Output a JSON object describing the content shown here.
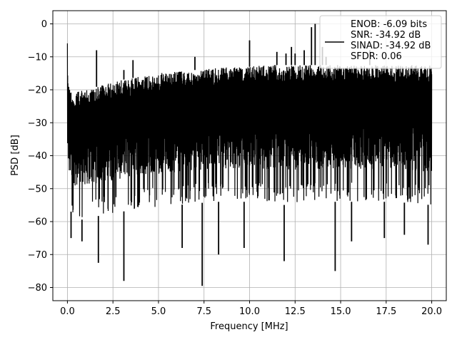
{
  "chart_data": {
    "type": "line",
    "xlabel": "Frequency [MHz]",
    "ylabel": "PSD [dB]",
    "xlim": [
      -0.8,
      20.8
    ],
    "ylim": [
      -84,
      4
    ],
    "x_ticks": [
      0.0,
      2.5,
      5.0,
      7.5,
      10.0,
      12.5,
      15.0,
      17.5,
      20.0
    ],
    "x_tick_labels": [
      "0.0",
      "2.5",
      "5.0",
      "7.5",
      "10.0",
      "12.5",
      "15.0",
      "17.5",
      "20.0"
    ],
    "y_ticks": [
      0,
      -10,
      -20,
      -30,
      -40,
      -50,
      -60,
      -70,
      -80
    ],
    "y_tick_labels": [
      "0",
      "−10",
      "−20",
      "−30",
      "−40",
      "−50",
      "−60",
      "−70",
      "−80"
    ],
    "grid": true,
    "legend_position": "top-right",
    "series": [
      {
        "name": "ENOB: -6.09 bits\nSNR: -34.92 dB\nSINAD: -34.92 dB\nSFDR: 0.06",
        "color": "#000000",
        "x_range": [
          0.0,
          20.0
        ],
        "upper_envelope": [
          [
            0.0,
            -2
          ],
          [
            0.03,
            -17
          ],
          [
            0.3,
            -21
          ],
          [
            1.0,
            -20
          ],
          [
            2.0,
            -18.5
          ],
          [
            3.0,
            -17
          ],
          [
            4.0,
            -16
          ],
          [
            5.0,
            -15
          ],
          [
            6.0,
            -14.5
          ],
          [
            7.0,
            -14
          ],
          [
            8.0,
            -13.5
          ],
          [
            9.0,
            -13
          ],
          [
            10.0,
            -13
          ],
          [
            11.0,
            -12.5
          ],
          [
            12.0,
            -12.5
          ],
          [
            13.0,
            -12.5
          ],
          [
            14.0,
            -12.5
          ],
          [
            15.0,
            -12.5
          ],
          [
            16.0,
            -12.5
          ],
          [
            17.0,
            -12.5
          ],
          [
            18.0,
            -12.5
          ],
          [
            19.0,
            -12.5
          ],
          [
            20.0,
            -12.5
          ]
        ],
        "lower_envelope": [
          [
            0.0,
            -55
          ],
          [
            0.5,
            -60
          ],
          [
            1.0,
            -59
          ],
          [
            2.0,
            -58
          ],
          [
            4.0,
            -56
          ],
          [
            6.0,
            -55
          ],
          [
            8.0,
            -54
          ],
          [
            10.0,
            -54
          ],
          [
            12.0,
            -55
          ],
          [
            14.0,
            -54
          ],
          [
            16.0,
            -54
          ],
          [
            18.0,
            -54
          ],
          [
            20.0,
            -55
          ]
        ],
        "spurs": [
          [
            1.6,
            -8
          ],
          [
            3.1,
            -14
          ],
          [
            3.6,
            -11
          ],
          [
            7.0,
            -10
          ],
          [
            10.0,
            -5
          ],
          [
            11.5,
            -8.5
          ],
          [
            12.0,
            -9
          ],
          [
            12.3,
            -7
          ],
          [
            12.5,
            -9
          ],
          [
            13.0,
            -8
          ],
          [
            13.4,
            -1
          ],
          [
            13.6,
            0
          ],
          [
            14.0,
            -7
          ],
          [
            14.2,
            -10
          ],
          [
            16.6,
            -8
          ]
        ],
        "dips": [
          [
            0.2,
            -65
          ],
          [
            0.8,
            -66
          ],
          [
            1.7,
            -72.5
          ],
          [
            3.1,
            -78
          ],
          [
            6.3,
            -68
          ],
          [
            7.4,
            -79.5
          ],
          [
            8.3,
            -70
          ],
          [
            9.7,
            -68
          ],
          [
            11.9,
            -72
          ],
          [
            14.7,
            -75
          ],
          [
            15.6,
            -66
          ],
          [
            17.4,
            -65
          ],
          [
            18.5,
            -64
          ],
          [
            19.8,
            -67
          ]
        ]
      }
    ]
  }
}
